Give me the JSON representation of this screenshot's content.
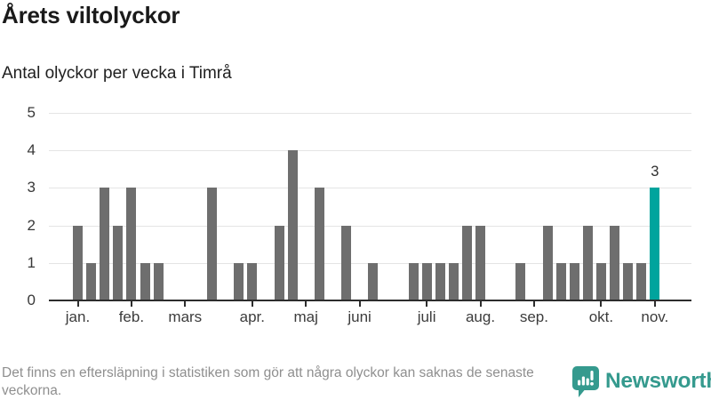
{
  "header": {
    "title": "Årets viltolyckor",
    "subtitle": "Antal olyckor per vecka i Timrå"
  },
  "chart_data": {
    "type": "bar",
    "title": "Årets viltolyckor",
    "subtitle": "Antal olyckor per vecka i Timrå",
    "x_unit": "vecka",
    "values": [
      2,
      1,
      3,
      2,
      3,
      1,
      1,
      0,
      0,
      0,
      3,
      0,
      1,
      1,
      0,
      2,
      4,
      0,
      3,
      0,
      2,
      0,
      1,
      0,
      0,
      1,
      1,
      1,
      1,
      2,
      2,
      0,
      0,
      1,
      0,
      2,
      1,
      1,
      2,
      1,
      2,
      1,
      1,
      3
    ],
    "weeks": 44,
    "month_ticks": [
      {
        "label": "jan.",
        "week": 1
      },
      {
        "label": "feb.",
        "week": 5
      },
      {
        "label": "mars",
        "week": 9
      },
      {
        "label": "apr.",
        "week": 14
      },
      {
        "label": "maj",
        "week": 18
      },
      {
        "label": "juni",
        "week": 22
      },
      {
        "label": "juli",
        "week": 27
      },
      {
        "label": "aug.",
        "week": 31
      },
      {
        "label": "sep.",
        "week": 35
      },
      {
        "label": "okt.",
        "week": 40
      },
      {
        "label": "nov.",
        "week": 44
      }
    ],
    "y_ticks": [
      "0",
      "1",
      "2",
      "3",
      "4",
      "5"
    ],
    "ylim": [
      0,
      5
    ],
    "grid": true,
    "legend": "none",
    "bar_color": "#6e6e6e",
    "highlight_index": 43,
    "highlight_color": "#00a49d",
    "highlight_value_label": "3"
  },
  "footer": {
    "note": "Det finns en eftersläpning i statistiken som gör att några olyckor kan saknas de senaste veckorna.",
    "brand": "Newsworthy",
    "brand_color": "#359a8e"
  },
  "icons": {
    "brand": "speech-bubble-bar-chart-exclamation-icon"
  }
}
